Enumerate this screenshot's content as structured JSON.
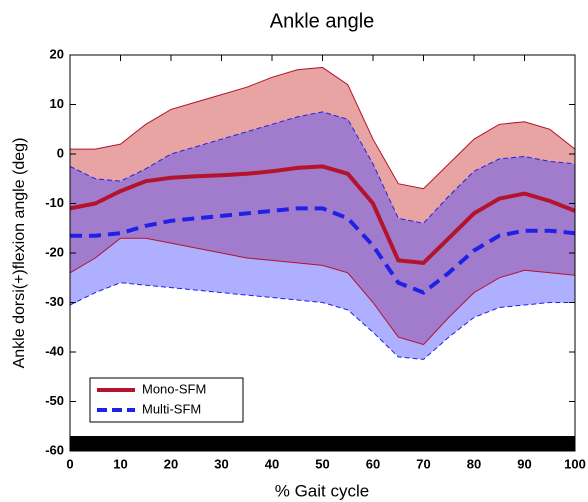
{
  "chart_data": {
    "type": "band-line",
    "title": "Ankle angle",
    "x_label": "% Gait cycle",
    "y_label": "Ankle dorsi(+)flexion angle (deg)",
    "x": [
      0,
      5,
      10,
      15,
      20,
      25,
      30,
      35,
      40,
      45,
      50,
      55,
      60,
      65,
      70,
      75,
      80,
      85,
      90,
      95,
      100
    ],
    "xlim": [
      0,
      100
    ],
    "xticks": [
      0,
      10,
      20,
      30,
      40,
      50,
      60,
      70,
      80,
      90,
      100
    ],
    "ylim": [
      -60,
      20
    ],
    "yticks": [
      -60,
      -50,
      -40,
      -30,
      -20,
      -10,
      0,
      10,
      20
    ],
    "legend_position": "lower left",
    "series": [
      {
        "name": "Mono-SFM",
        "color": "#b3132b",
        "band_color": "#cc3333",
        "dashed": false,
        "values": [
          -11,
          -10,
          -7.5,
          -5.5,
          -4.8,
          -4.5,
          -4.3,
          -4,
          -3.5,
          -2.8,
          -2.5,
          -4,
          -10,
          -21.5,
          -22,
          -17,
          -12,
          -9,
          -8,
          -9.5,
          -11.5
        ],
        "upper": [
          1,
          1,
          2,
          6,
          9,
          10.5,
          12,
          13.5,
          15.5,
          17,
          17.5,
          14,
          3,
          -6,
          -7,
          -2,
          3,
          6,
          6.5,
          5,
          1
        ],
        "lower": [
          -24,
          -21,
          -17,
          -17,
          -18,
          -19,
          -20,
          -21,
          -21.5,
          -22,
          -22.5,
          -24,
          -30,
          -37,
          -38.5,
          -33,
          -28,
          -25,
          -23.5,
          -24,
          -24.5
        ]
      },
      {
        "name": "Multi-SFM",
        "color": "#2020e6",
        "band_color": "#4d4dff",
        "dashed": true,
        "values": [
          -16.5,
          -16.5,
          -16,
          -14.5,
          -13.5,
          -13,
          -12.5,
          -12,
          -11.5,
          -11,
          -11,
          -13,
          -18.5,
          -26,
          -28,
          -24,
          -19.5,
          -16.5,
          -15.5,
          -15.5,
          -16
        ],
        "upper": [
          -2.5,
          -5,
          -5.5,
          -3,
          0,
          1.5,
          3,
          4.5,
          6,
          7.5,
          8.5,
          7,
          -2,
          -13,
          -14,
          -8.5,
          -3.5,
          -1,
          -0.5,
          -1.5,
          -2
        ],
        "lower": [
          -30.5,
          -28,
          -26,
          -26.5,
          -27,
          -27.5,
          -28,
          -28.5,
          -29,
          -29.5,
          -30,
          -31.5,
          -36,
          -41,
          -41.5,
          -37,
          -33,
          -31,
          -30.5,
          -30,
          -30
        ]
      }
    ]
  }
}
